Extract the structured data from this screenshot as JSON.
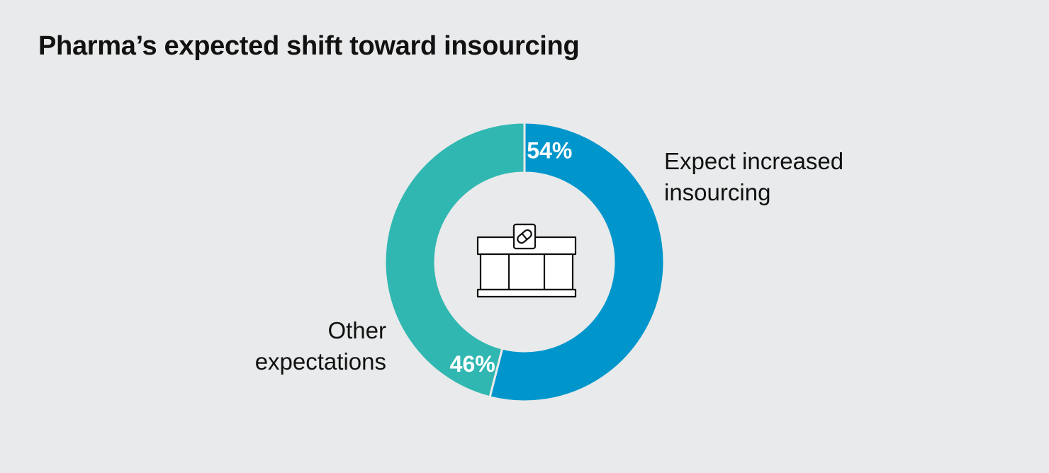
{
  "title": "Pharma’s expected shift toward insourcing",
  "colors": {
    "background": "#e9eaeb",
    "increased": "#0096cc",
    "other": "#31b7b1",
    "text": "#111111",
    "data_label": "#ffffff"
  },
  "center_icon": "pharmacy-store-icon",
  "chart_data": {
    "type": "pie",
    "subtype": "donut",
    "title": "Pharma’s expected shift toward insourcing",
    "slices": [
      {
        "name": "Expect increased insourcing",
        "value": 54,
        "label": "54%",
        "legend_lines": [
          "Expect increased",
          "insourcing"
        ],
        "color": "#0096cc"
      },
      {
        "name": "Other expectations",
        "value": 46,
        "label": "46%",
        "legend_lines": [
          "Other",
          "expectations"
        ],
        "color": "#31b7b1"
      }
    ]
  }
}
